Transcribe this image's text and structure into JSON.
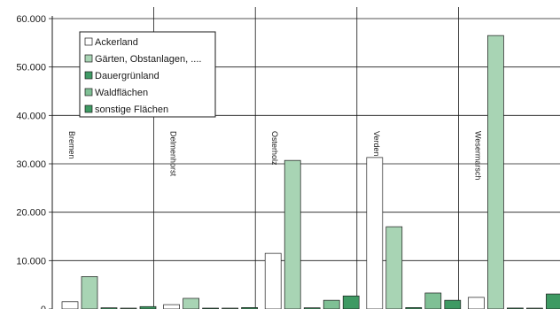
{
  "chart_data": {
    "type": "bar",
    "categories": [
      "Bremen",
      "Delmenhorst",
      "Osterholz",
      "Verden",
      "Wesermarsch"
    ],
    "series": [
      {
        "name": "Ackerland",
        "color": "#ffffff",
        "values": [
          1500,
          900,
          11500,
          31300,
          2400
        ]
      },
      {
        "name": "Gärten, Obstanlagen, ....",
        "color": "#a8d4b4",
        "values": [
          6700,
          2200,
          30700,
          17000,
          56500
        ]
      },
      {
        "name": "Dauergrünland",
        "color": "#3f9a65",
        "values": [
          250,
          80,
          250,
          300,
          200
        ]
      },
      {
        "name": "Waldflächen",
        "color": "#7fc095",
        "values": [
          100,
          50,
          1800,
          3300,
          150
        ]
      },
      {
        "name": "sonstige Flächen",
        "color": "#3e9a63",
        "values": [
          500,
          300,
          2700,
          1800,
          3100
        ]
      }
    ],
    "yticks": [
      "0",
      "10.000",
      "20.000",
      "30.000",
      "40.000",
      "50.000",
      "60.000"
    ],
    "ylim": [
      0,
      60000
    ],
    "title": "",
    "xlabel": "",
    "ylabel": "",
    "legend_position": "top-left",
    "grid": "horizontal"
  }
}
